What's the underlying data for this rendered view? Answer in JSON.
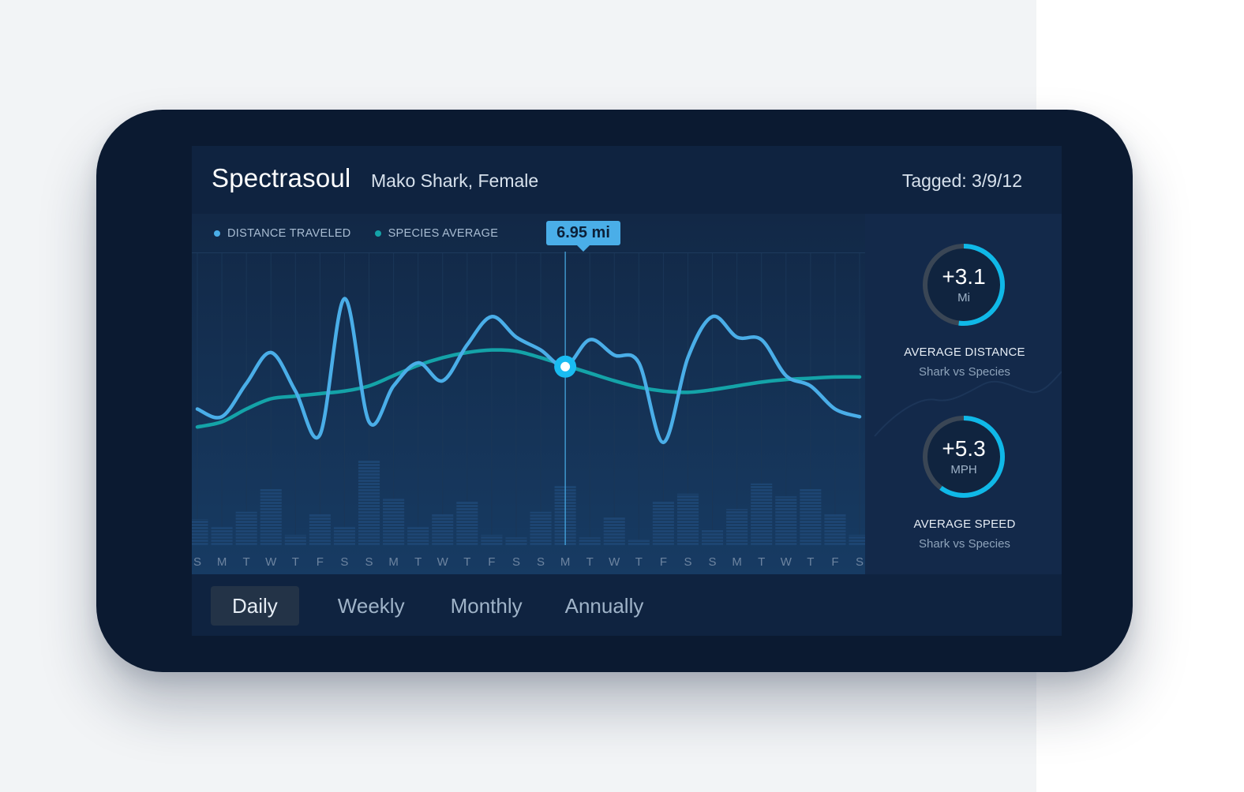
{
  "header": {
    "title": "Spectrasoul",
    "subtitle": "Mako Shark, Female",
    "tagged": "Tagged: 3/9/12"
  },
  "legend": [
    {
      "label": "DISTANCE TRAVELED",
      "color": "#4aaee8"
    },
    {
      "label": "SPECIES AVERAGE",
      "color": "#14a3a8"
    }
  ],
  "tooltip": {
    "label": "6.95 mi"
  },
  "chart_data": {
    "type": "line",
    "categories": [
      "S",
      "M",
      "T",
      "W",
      "T",
      "F",
      "S",
      "S",
      "M",
      "T",
      "W",
      "T",
      "F",
      "S",
      "S",
      "M",
      "T",
      "W",
      "T",
      "F",
      "S",
      "S",
      "M",
      "T",
      "W",
      "T",
      "F",
      "S"
    ],
    "series": [
      {
        "name": "DISTANCE TRAVELED",
        "color": "#4aaee8",
        "values": [
          5.3,
          5.0,
          6.3,
          7.5,
          6.0,
          4.3,
          9.6,
          4.8,
          6.2,
          7.1,
          6.4,
          7.8,
          8.9,
          8.1,
          7.6,
          6.95,
          8.0,
          7.4,
          7.1,
          4.0,
          7.3,
          8.9,
          8.1,
          8.0,
          6.6,
          6.2,
          5.3,
          5.0
        ]
      },
      {
        "name": "SPECIES AVERAGE",
        "color": "#14a3a8",
        "values": [
          4.6,
          4.8,
          5.3,
          5.7,
          5.8,
          5.9,
          6.0,
          6.2,
          6.6,
          7.0,
          7.3,
          7.5,
          7.6,
          7.55,
          7.3,
          7.0,
          6.7,
          6.4,
          6.15,
          6.0,
          5.95,
          6.05,
          6.2,
          6.35,
          6.45,
          6.5,
          6.55,
          6.55
        ]
      }
    ],
    "bars": [
      1.0,
      0.7,
      1.3,
      2.2,
      0.4,
      1.2,
      0.7,
      3.3,
      1.8,
      0.7,
      1.2,
      1.7,
      0.4,
      0.3,
      1.3,
      2.3,
      0.3,
      1.1,
      0.2,
      1.7,
      2.0,
      0.6,
      1.4,
      2.4,
      1.9,
      2.2,
      1.2,
      0.4
    ],
    "ylim": [
      0,
      11
    ],
    "bars_max": 11,
    "highlight_index": 15,
    "grid": true
  },
  "stats": [
    {
      "value": "+3.1",
      "unit": "Mi",
      "label": "AVERAGE DISTANCE",
      "sub": "Shark vs Species",
      "fraction": 0.52
    },
    {
      "value": "+5.3",
      "unit": "MPH",
      "label": "AVERAGE SPEED",
      "sub": "Shark vs Species",
      "fraction": 0.6
    }
  ],
  "period_tabs": [
    {
      "label": "Daily",
      "active": true
    },
    {
      "label": "Weekly",
      "active": false
    },
    {
      "label": "Monthly",
      "active": false
    },
    {
      "label": "Annually",
      "active": false
    }
  ],
  "colors": {
    "device": "#0b1a31",
    "screen": "#0f2340",
    "accent": "#4aaee8",
    "teal": "#14a3a8",
    "gauge_arc": "#0fb8e8",
    "gauge_track": "#3a4655"
  }
}
